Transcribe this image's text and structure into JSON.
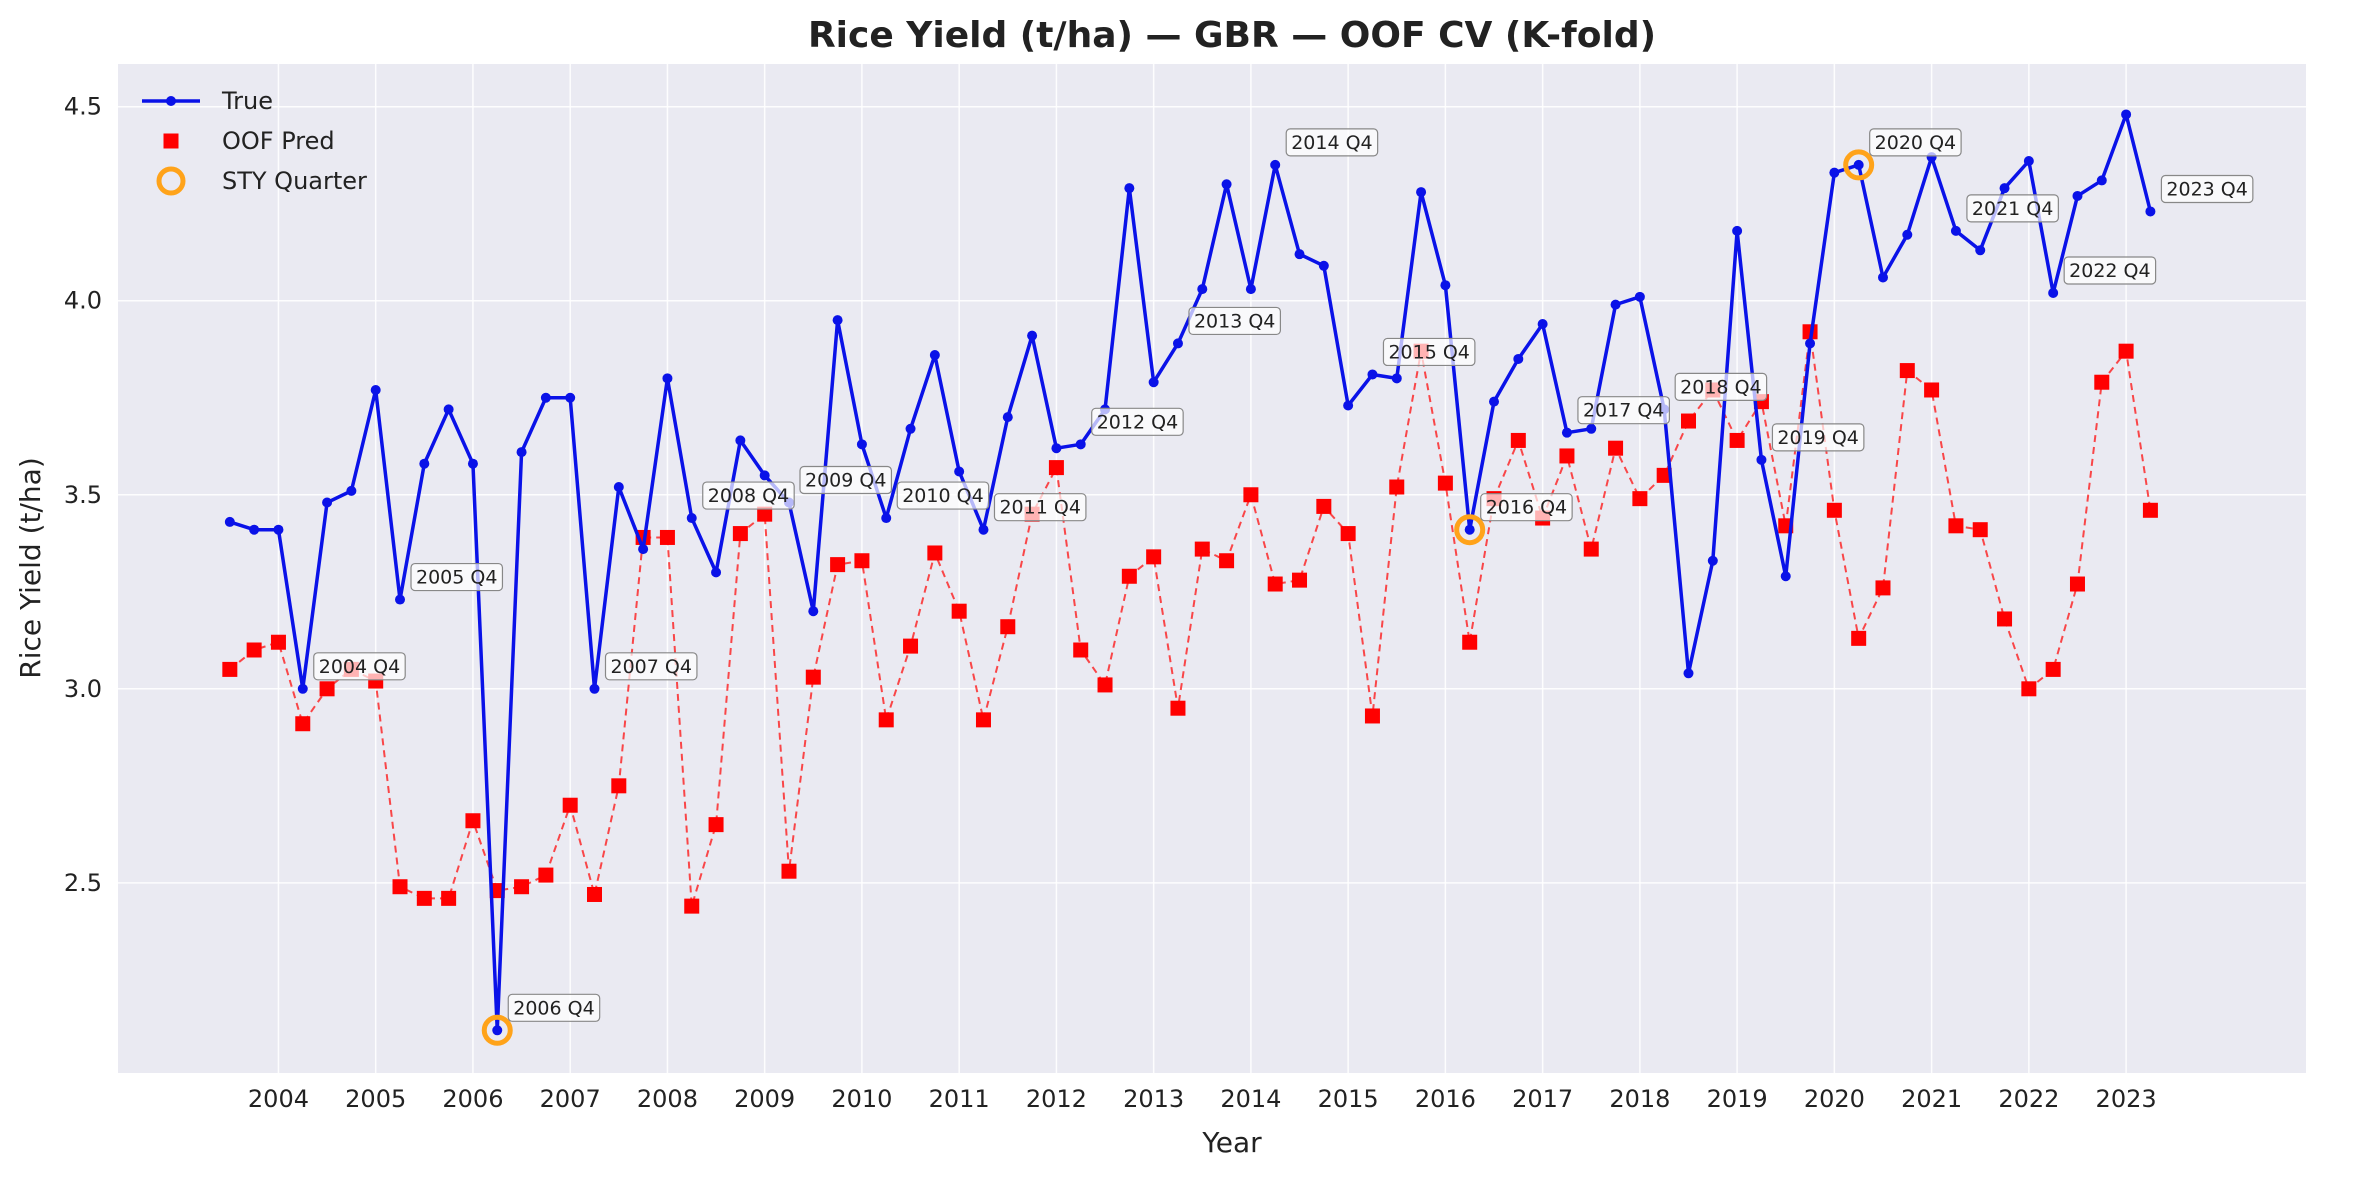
{
  "chart_data": {
    "type": "line",
    "title": "Rice Yield (t/ha) — GBR — OOF CV (K-fold)",
    "xlabel": "Year",
    "ylabel": "Rice Yield (t/ha)",
    "xlim": [
      2002.35,
      2024.85
    ],
    "ylim": [
      2.01,
      4.61
    ],
    "x_ticks": [
      "2004",
      "2005",
      "2006",
      "2007",
      "2008",
      "2009",
      "2010",
      "2011",
      "2012",
      "2013",
      "2014",
      "2015",
      "2016",
      "2017",
      "2018",
      "2019",
      "2020",
      "2021",
      "2022",
      "2023"
    ],
    "y_ticks": [
      "2.5",
      "3.0",
      "3.5",
      "4.0",
      "4.5"
    ],
    "grid": true,
    "legend_position": "top-left",
    "legend": [
      {
        "label": "True",
        "style": "line-dot",
        "color": "#0a12e8"
      },
      {
        "label": "OOF Pred",
        "style": "square",
        "color": "#ff0000"
      },
      {
        "label": "STY Quarter",
        "style": "ring",
        "color": "#ffa31a"
      }
    ],
    "x": [
      2003.5,
      2003.75,
      2004.0,
      2004.25,
      2004.5,
      2004.75,
      2005.0,
      2005.25,
      2005.5,
      2005.75,
      2006.0,
      2006.25,
      2006.5,
      2006.75,
      2007.0,
      2007.25,
      2007.5,
      2007.75,
      2008.0,
      2008.25,
      2008.5,
      2008.75,
      2009.0,
      2009.25,
      2009.5,
      2009.75,
      2010.0,
      2010.25,
      2010.5,
      2010.75,
      2011.0,
      2011.25,
      2011.5,
      2011.75,
      2012.0,
      2012.25,
      2012.5,
      2012.75,
      2013.0,
      2013.25,
      2013.5,
      2013.75,
      2014.0,
      2014.25,
      2014.5,
      2014.75,
      2015.0,
      2015.25,
      2015.5,
      2015.75,
      2016.0,
      2016.25,
      2016.5,
      2016.75,
      2017.0,
      2017.25,
      2017.5,
      2017.75,
      2018.0,
      2018.25,
      2018.5,
      2018.75,
      2019.0,
      2019.25,
      2019.5,
      2019.75,
      2020.0,
      2020.25,
      2020.5,
      2020.75,
      2021.0,
      2021.25,
      2021.5,
      2021.75,
      2022.0,
      2022.25,
      2022.5,
      2022.75,
      2023.0,
      2023.25
    ],
    "series": [
      {
        "name": "True",
        "color": "#0a12e8",
        "values": [
          3.43,
          3.41,
          3.41,
          3.0,
          3.48,
          3.51,
          3.77,
          3.23,
          3.58,
          3.72,
          3.58,
          2.12,
          3.61,
          3.75,
          3.75,
          3.0,
          3.52,
          3.36,
          3.8,
          3.44,
          3.3,
          3.64,
          3.55,
          3.48,
          3.2,
          3.95,
          3.63,
          3.44,
          3.67,
          3.86,
          3.56,
          3.41,
          3.7,
          3.91,
          3.62,
          3.63,
          3.72,
          4.29,
          3.79,
          3.89,
          4.03,
          4.3,
          4.03,
          4.35,
          4.12,
          4.09,
          3.73,
          3.81,
          3.8,
          4.28,
          4.04,
          3.41,
          3.74,
          3.85,
          3.94,
          3.66,
          3.67,
          3.99,
          4.01,
          3.72,
          3.04,
          3.33,
          4.18,
          3.59,
          3.29,
          3.89,
          4.33,
          4.35,
          4.06,
          4.17,
          4.37,
          4.18,
          4.13,
          4.29,
          4.36,
          4.02,
          4.27,
          4.31,
          4.48,
          4.23
        ]
      },
      {
        "name": "OOF Pred",
        "color": "#ff0000",
        "values": [
          3.05,
          3.1,
          3.12,
          2.91,
          3.0,
          3.05,
          3.02,
          2.49,
          2.46,
          2.46,
          2.66,
          2.48,
          2.49,
          2.52,
          2.7,
          2.47,
          2.75,
          3.39,
          3.39,
          2.44,
          2.65,
          3.4,
          3.45,
          2.53,
          3.03,
          3.32,
          3.33,
          2.92,
          3.11,
          3.35,
          3.2,
          2.92,
          3.16,
          3.45,
          3.57,
          3.1,
          3.01,
          3.29,
          3.34,
          2.95,
          3.36,
          3.33,
          3.5,
          3.27,
          3.28,
          3.47,
          3.4,
          2.93,
          3.52,
          3.87,
          3.53,
          3.12,
          3.49,
          3.64,
          3.44,
          3.6,
          3.36,
          3.62,
          3.49,
          3.55,
          3.69,
          3.77,
          3.64,
          3.74,
          3.42,
          3.92,
          3.46,
          3.13,
          3.26,
          3.82,
          3.77,
          3.42,
          3.41,
          3.18,
          3.0,
          3.05,
          3.27,
          3.79,
          3.87,
          3.46
        ]
      }
    ],
    "sty_quarters": [
      {
        "x": 2006.25,
        "y": 2.12
      },
      {
        "x": 2016.25,
        "y": 3.41
      },
      {
        "x": 2020.25,
        "y": 4.35
      }
    ],
    "annotations": [
      {
        "label": "2004 Q4",
        "x": 2004.25,
        "y": 3.0
      },
      {
        "label": "2005 Q4",
        "x": 2005.25,
        "y": 3.23
      },
      {
        "label": "2006 Q4",
        "x": 2006.25,
        "y": 2.12
      },
      {
        "label": "2007 Q4",
        "x": 2007.25,
        "y": 3.0
      },
      {
        "label": "2008 Q4",
        "x": 2008.25,
        "y": 3.44
      },
      {
        "label": "2009 Q4",
        "x": 2009.25,
        "y": 3.48
      },
      {
        "label": "2010 Q4",
        "x": 2010.25,
        "y": 3.44
      },
      {
        "label": "2011 Q4",
        "x": 2011.25,
        "y": 3.41
      },
      {
        "label": "2012 Q4",
        "x": 2012.25,
        "y": 3.63
      },
      {
        "label": "2013 Q4",
        "x": 2013.25,
        "y": 3.89
      },
      {
        "label": "2014 Q4",
        "x": 2014.25,
        "y": 4.35
      },
      {
        "label": "2015 Q4",
        "x": 2015.25,
        "y": 3.81
      },
      {
        "label": "2016 Q4",
        "x": 2016.25,
        "y": 3.41
      },
      {
        "label": "2017 Q4",
        "x": 2017.25,
        "y": 3.66
      },
      {
        "label": "2018 Q4",
        "x": 2018.25,
        "y": 3.72
      },
      {
        "label": "2019 Q4",
        "x": 2019.25,
        "y": 3.59
      },
      {
        "label": "2020 Q4",
        "x": 2020.25,
        "y": 4.35
      },
      {
        "label": "2021 Q4",
        "x": 2021.25,
        "y": 4.18
      },
      {
        "label": "2022 Q4",
        "x": 2022.25,
        "y": 4.02
      },
      {
        "label": "2023 Q4",
        "x": 2023.25,
        "y": 4.23
      }
    ]
  }
}
